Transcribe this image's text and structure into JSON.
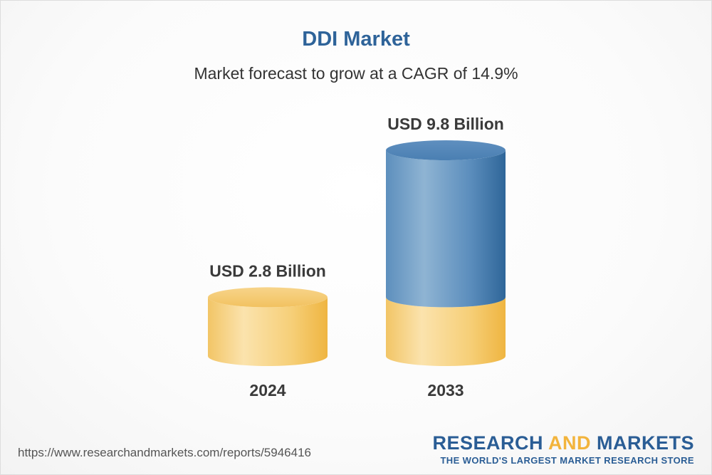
{
  "chart_data": {
    "type": "bar",
    "title": "DDI Market",
    "subtitle": "Market forecast to grow at a CAGR of 14.9%",
    "categories": [
      "2024",
      "2033"
    ],
    "values": [
      2.8,
      9.8
    ],
    "value_labels": [
      "USD 2.8 Billion",
      "USD 9.8 Billion"
    ],
    "unit": "USD Billion",
    "xlabel": "",
    "ylabel": "",
    "ylim": [
      0,
      9.8
    ]
  },
  "colors": {
    "title": "#2e6399",
    "base_bar": "#f3c35e",
    "growth_bar": "#3f7fb4"
  },
  "footer": {
    "source_url": "https://www.researchandmarkets.com/reports/5946416",
    "brand_part1": "RESEARCH ",
    "brand_accent": "AND",
    "brand_part2": " MARKETS",
    "brand_tagline": "THE WORLD'S LARGEST MARKET RESEARCH STORE"
  }
}
